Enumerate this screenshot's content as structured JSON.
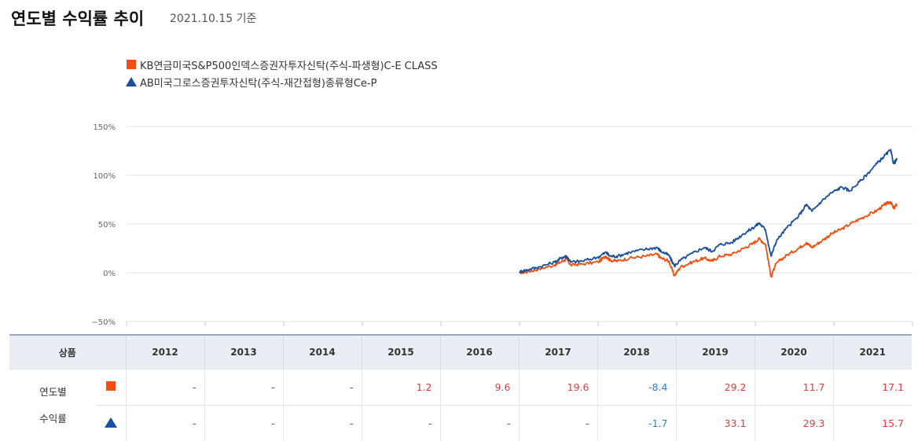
{
  "header": {
    "title": "연도별 수익률 추이",
    "date": "2021.10.15 기준"
  },
  "colors": {
    "series_a": "#f24e0e",
    "series_b": "#1a4f9c",
    "positive": "#e03a3a",
    "negative": "#2b7fd1"
  },
  "legend": [
    {
      "name": "KB연금미국S&P500인덱스증권자투자신탁(주식-파생형)C-E CLASS",
      "marker": "square"
    },
    {
      "name": "AB미국그로스증권투자신탁(주식-재간접형)종류형Ce-P",
      "marker": "triangle"
    }
  ],
  "chart_data": {
    "type": "line",
    "y_ticks": [
      "150%",
      "100%",
      "50%",
      "0%",
      "−50%"
    ],
    "ylim": [
      -50,
      150
    ],
    "xlim": [
      2012,
      2022
    ],
    "grid": true,
    "legend_position": "top-left",
    "series": [
      {
        "name": "KB연금미국S&P500인덱스증권자투자신탁(주식-파생형)C-E CLASS",
        "color": "#f24e0e",
        "points": [
          [
            2017.0,
            0
          ],
          [
            2017.1,
            1
          ],
          [
            2017.25,
            4
          ],
          [
            2017.45,
            8
          ],
          [
            2017.55,
            12
          ],
          [
            2017.6,
            14
          ],
          [
            2017.65,
            8
          ],
          [
            2017.8,
            9
          ],
          [
            2018.0,
            11
          ],
          [
            2018.1,
            17
          ],
          [
            2018.15,
            13
          ],
          [
            2018.25,
            12
          ],
          [
            2018.4,
            15
          ],
          [
            2018.6,
            17
          ],
          [
            2018.75,
            19
          ],
          [
            2018.8,
            15
          ],
          [
            2018.9,
            12
          ],
          [
            2018.97,
            -3
          ],
          [
            2019.05,
            6
          ],
          [
            2019.2,
            11
          ],
          [
            2019.35,
            15
          ],
          [
            2019.45,
            12
          ],
          [
            2019.55,
            17
          ],
          [
            2019.7,
            19
          ],
          [
            2019.85,
            25
          ],
          [
            2019.97,
            30
          ],
          [
            2020.05,
            35
          ],
          [
            2020.13,
            29
          ],
          [
            2020.2,
            -4
          ],
          [
            2020.27,
            10
          ],
          [
            2020.4,
            18
          ],
          [
            2020.55,
            25
          ],
          [
            2020.65,
            31
          ],
          [
            2020.72,
            26
          ],
          [
            2020.85,
            33
          ],
          [
            2020.97,
            40
          ],
          [
            2021.1,
            45
          ],
          [
            2021.25,
            52
          ],
          [
            2021.4,
            58
          ],
          [
            2021.55,
            64
          ],
          [
            2021.65,
            70
          ],
          [
            2021.72,
            73
          ],
          [
            2021.76,
            66
          ],
          [
            2021.8,
            70
          ]
        ]
      },
      {
        "name": "AB미국그로스증권투자신탁(주식-재간접형)종류형Ce-P",
        "color": "#1a4f9c",
        "points": [
          [
            2017.0,
            1
          ],
          [
            2017.1,
            3
          ],
          [
            2017.25,
            6
          ],
          [
            2017.45,
            11
          ],
          [
            2017.55,
            16
          ],
          [
            2017.6,
            17
          ],
          [
            2017.65,
            11
          ],
          [
            2017.8,
            12
          ],
          [
            2018.0,
            16
          ],
          [
            2018.1,
            21
          ],
          [
            2018.15,
            17
          ],
          [
            2018.25,
            17
          ],
          [
            2018.4,
            21
          ],
          [
            2018.6,
            24
          ],
          [
            2018.75,
            26
          ],
          [
            2018.8,
            22
          ],
          [
            2018.9,
            18
          ],
          [
            2018.97,
            7
          ],
          [
            2019.05,
            13
          ],
          [
            2019.2,
            20
          ],
          [
            2019.35,
            26
          ],
          [
            2019.45,
            22
          ],
          [
            2019.55,
            29
          ],
          [
            2019.7,
            31
          ],
          [
            2019.85,
            40
          ],
          [
            2019.97,
            46
          ],
          [
            2020.05,
            51
          ],
          [
            2020.13,
            44
          ],
          [
            2020.2,
            17
          ],
          [
            2020.27,
            33
          ],
          [
            2020.4,
            46
          ],
          [
            2020.55,
            58
          ],
          [
            2020.65,
            70
          ],
          [
            2020.72,
            63
          ],
          [
            2020.85,
            74
          ],
          [
            2020.97,
            82
          ],
          [
            2021.1,
            88
          ],
          [
            2021.2,
            84
          ],
          [
            2021.35,
            95
          ],
          [
            2021.5,
            108
          ],
          [
            2021.62,
            118
          ],
          [
            2021.72,
            126
          ],
          [
            2021.76,
            112
          ],
          [
            2021.8,
            116
          ]
        ]
      }
    ]
  },
  "table": {
    "header_label": "상품",
    "years": [
      "2012",
      "2013",
      "2014",
      "2015",
      "2016",
      "2017",
      "2018",
      "2019",
      "2020",
      "2021"
    ],
    "row_label_1": "연도별",
    "row_label_2": "수익률",
    "rows": [
      {
        "marker": "square",
        "values": [
          "-",
          "-",
          "-",
          "1.2",
          "9.6",
          "19.6",
          "-8.4",
          "29.2",
          "11.7",
          "17.1"
        ]
      },
      {
        "marker": "triangle",
        "values": [
          "-",
          "-",
          "-",
          "-",
          "-",
          "-",
          "-1.7",
          "33.1",
          "29.3",
          "15.7"
        ]
      }
    ]
  }
}
